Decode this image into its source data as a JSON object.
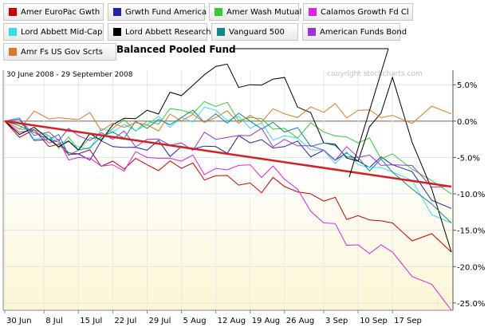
{
  "legend": {
    "items": [
      {
        "label": "Amer EuroPac Gwth",
        "color": "#cc0000"
      },
      {
        "label": "Grwth Fund America",
        "color": "#2222aa"
      },
      {
        "label": "Amer Wash Mutual",
        "color": "#33cc33"
      },
      {
        "label": "Calamos Growth Fd Cl",
        "color": "#dd22dd"
      },
      {
        "label": "Lord Abbett Mid-Cap",
        "color": "#33ddee"
      },
      {
        "label": "Lord Abbett Research",
        "color": "#000000"
      },
      {
        "label": "Vanguard 500",
        "color": "#118888"
      },
      {
        "label": "American Funds Bond",
        "color": "#9933dd"
      },
      {
        "label": "Amr Fs US Gov Scrts",
        "color": "#dd7722"
      }
    ]
  },
  "chart_data": {
    "type": "line",
    "annotation": "Balanced Pooled Fund",
    "date_range": "30 June 2008 - 29 September 2008",
    "watermark": "copyright stockcharts.com",
    "x_ticks": [
      "30 Jun",
      "8 Jul",
      "15 Jul",
      "22 Jul",
      "29 Jul",
      "5 Aug",
      "12 Aug",
      "19 Aug",
      "26 Aug",
      "3 Sep",
      "10 Sep",
      "17 Sep"
    ],
    "y_ticks": [
      5.0,
      0.0,
      -5.0,
      -10.0,
      -15.0,
      -20.0,
      -25.0
    ],
    "y_tick_labels": [
      "5.0%",
      "0.0%",
      "-5.0%",
      "-10.0%",
      "-15.0%",
      "-20.0%",
      "-25.0%"
    ],
    "ylim": [
      -26,
      7
    ],
    "x_days": [
      0,
      9,
      15,
      22,
      29,
      36,
      43,
      50,
      57,
      65,
      72,
      79,
      91
    ],
    "series": [
      {
        "name": "Amer EuroPac Gwth",
        "color": "#cc0000",
        "values": [
          0,
          -3.5,
          -4.5,
          -5.5,
          -6,
          -6.5,
          -7.5,
          -8.5,
          -9,
          -11,
          -13,
          -14,
          -18
        ]
      },
      {
        "name": "Grwth Fund America",
        "color": "#2222aa",
        "values": [
          0,
          -2.5,
          -4.5,
          -3.5,
          -4,
          -3.5,
          -3.5,
          -3,
          -3.5,
          -4,
          -5.5,
          -6,
          -12
        ]
      },
      {
        "name": "Amer Wash Mutual",
        "color": "#33cc33",
        "values": [
          0,
          -2,
          -4,
          -1,
          0,
          1.5,
          2,
          0.5,
          -1,
          -1.5,
          -3,
          -4.5,
          -10
        ]
      },
      {
        "name": "Calamos Growth Fd Cl",
        "color": "#dd22dd",
        "values": [
          0,
          -3,
          -5,
          -6,
          -5,
          -5.5,
          -6.5,
          -6,
          -8,
          -14,
          -17,
          -18,
          -26
        ]
      },
      {
        "name": "Lord Abbett Mid-Cap",
        "color": "#33ddee",
        "values": [
          0,
          -2,
          -3.5,
          -1.5,
          -0.5,
          0.5,
          1.5,
          -1,
          -2,
          -4,
          -6,
          -7,
          -14
        ]
      },
      {
        "name": "Lord Abbett Research",
        "color": "#000000",
        "values": [
          0,
          -2.5,
          -4,
          -0.5,
          1.5,
          3.5,
          7.5,
          5,
          6,
          -3,
          -5.5,
          6,
          -18
        ]
      },
      {
        "name": "Vanguard 500",
        "color": "#118888",
        "values": [
          0,
          -2.5,
          -4,
          -1.5,
          -1,
          0.5,
          1,
          0,
          -1.5,
          -3,
          -5,
          -7,
          -14
        ]
      },
      {
        "name": "American Funds Bond",
        "color": "#9933dd",
        "values": [
          0,
          -1.5,
          -2,
          -2.5,
          -2.5,
          -3,
          -2.5,
          -2,
          -2.5,
          -4,
          -5,
          -6,
          -9
        ]
      },
      {
        "name": "Amr Fs US Gov Scrts",
        "color": "#dd7722",
        "values": [
          0,
          0.3,
          0.2,
          -0.3,
          -0.5,
          0,
          0.5,
          0.8,
          1,
          1.2,
          1.5,
          0.8,
          1
        ]
      },
      {
        "name": "Balanced Pooled Fund",
        "color": "#d42020",
        "values": [
          0,
          -9
        ]
      }
    ]
  }
}
